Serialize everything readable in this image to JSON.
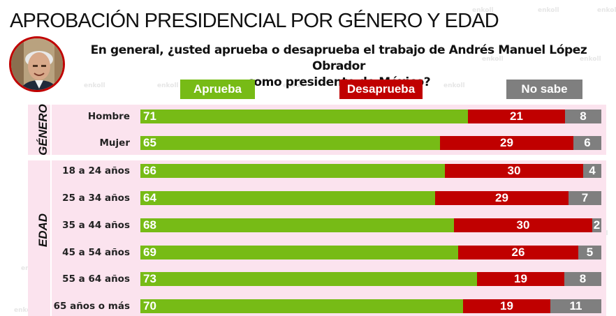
{
  "title": "APROBACIÓN PRESIDENCIAL POR GÉNERO Y EDAD",
  "subtitle_line1": "En general, ¿usted aprueba o desaprueba el trabajo de Andrés Manuel López Obrador",
  "subtitle_line2": "como presidente de México?",
  "watermark_text": "enkoll",
  "colors": {
    "approve": "#77bb16",
    "disapprove": "#c00000",
    "nosabe": "#7f7f7f",
    "panel": "#fbe3ee"
  },
  "chart_data": {
    "type": "bar",
    "orientation": "horizontal",
    "stacked": true,
    "title": "APROBACIÓN PRESIDENCIAL POR GÉNERO Y EDAD",
    "xlim": [
      0,
      100
    ],
    "legend": [
      "Aprueba",
      "Desaprueba",
      "No sabe"
    ],
    "groups": [
      {
        "name": "GÉNERO",
        "categories": [
          "Hombre",
          "Mujer"
        ],
        "series": [
          {
            "name": "Aprueba",
            "values": [
              71,
              65
            ]
          },
          {
            "name": "Desaprueba",
            "values": [
              21,
              29
            ]
          },
          {
            "name": "No sabe",
            "values": [
              8,
              6
            ]
          }
        ]
      },
      {
        "name": "EDAD",
        "categories": [
          "18 a 24 años",
          "25 a 34 años",
          "35 a 44 años",
          "45 a 54 años",
          "55 a 64 años",
          "65 años o más"
        ],
        "series": [
          {
            "name": "Aprueba",
            "values": [
              66,
              64,
              68,
              69,
              73,
              70
            ]
          },
          {
            "name": "Desaprueba",
            "values": [
              30,
              29,
              30,
              26,
              19,
              19
            ]
          },
          {
            "name": "No sabe",
            "values": [
              4,
              7,
              2,
              5,
              8,
              11
            ]
          }
        ]
      }
    ]
  }
}
